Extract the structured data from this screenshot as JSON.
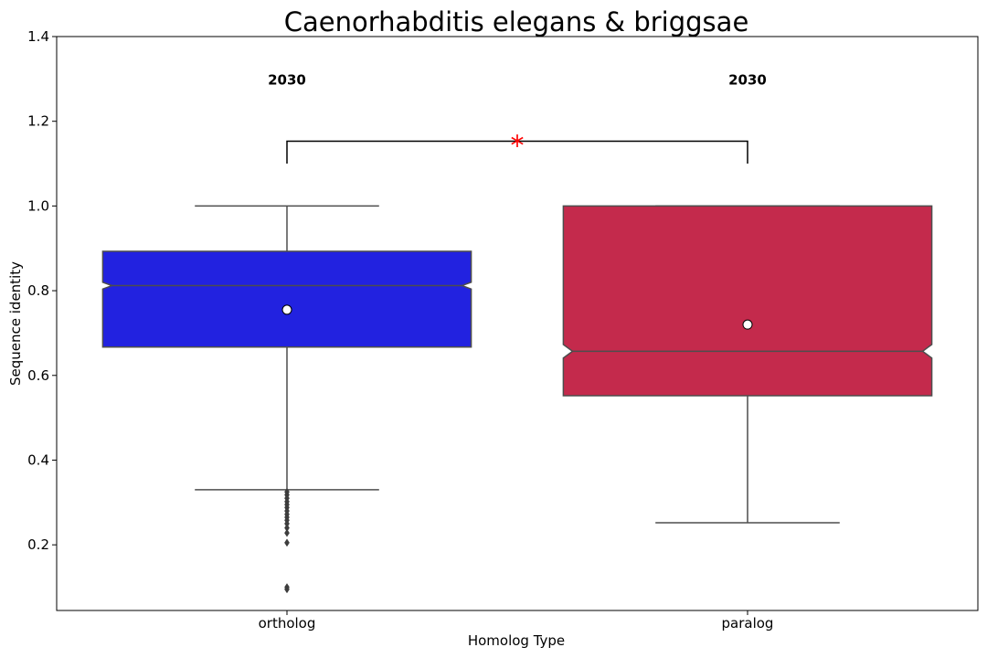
{
  "chart_data": {
    "type": "box",
    "title": "Caenorhabditis elegans & briggsae",
    "xlabel": "Homolog Type",
    "ylabel": "Sequence identity",
    "ylim": [
      0.045,
      1.4
    ],
    "yticks": [
      0.2,
      0.4,
      0.6,
      0.8,
      1.0,
      1.2,
      1.4
    ],
    "ytick_labels": [
      "0.2",
      "0.4",
      "0.6",
      "0.8",
      "1.0",
      "1.2",
      "1.4"
    ],
    "categories": [
      "ortholog",
      "paralog"
    ],
    "notched": true,
    "grid": false,
    "boxes": [
      {
        "category": "ortholog",
        "color": "#2222e0",
        "count_label": "2030",
        "whisker_low": 0.33,
        "q1": 0.667,
        "median": 0.812,
        "q3": 0.893,
        "whisker_high": 1.0,
        "notch_low": 0.804,
        "notch_high": 0.82,
        "mean": 0.755,
        "outliers": [
          0.325,
          0.318,
          0.31,
          0.302,
          0.295,
          0.288,
          0.28,
          0.272,
          0.265,
          0.258,
          0.25,
          0.24,
          0.228,
          0.205,
          0.1,
          0.095
        ]
      },
      {
        "category": "paralog",
        "color": "#c42a4c",
        "count_label": "2030",
        "whisker_low": 0.252,
        "q1": 0.552,
        "median": 0.657,
        "q3": 1.0,
        "whisker_high": 1.0,
        "notch_low": 0.641,
        "notch_high": 0.673,
        "mean": 0.72,
        "outliers": []
      }
    ],
    "significance": {
      "from": "ortholog",
      "to": "paralog",
      "y_bottom": 1.1,
      "y_top": 1.153,
      "label": "*",
      "color": "#ff0000"
    }
  }
}
